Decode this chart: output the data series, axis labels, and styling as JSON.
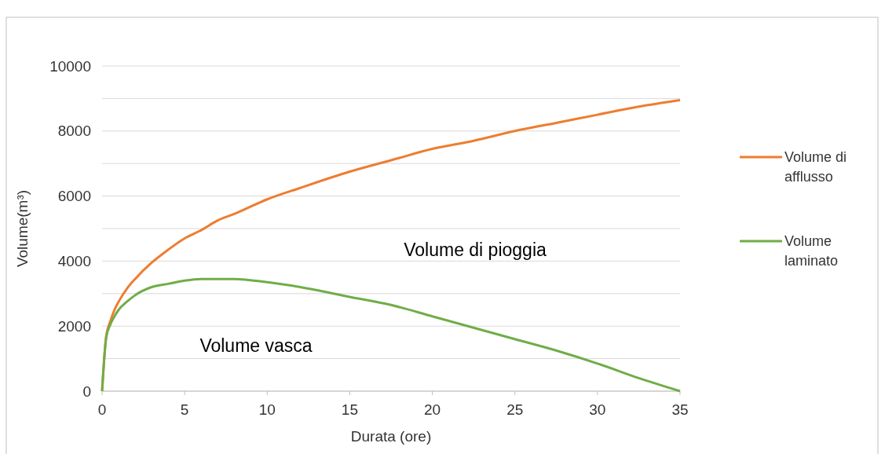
{
  "chart_data": {
    "type": "line",
    "xlabel": "Durata (ore)",
    "ylabel": "Volume(m³)",
    "xlim": [
      0,
      35
    ],
    "xticks": [
      0,
      5,
      10,
      15,
      20,
      25,
      30,
      35
    ],
    "ylim": [
      0,
      10000
    ],
    "yticks": [
      0,
      {
        "value": 1000,
        "label": null
      },
      2000,
      {
        "value": 3000,
        "label": null
      },
      4000,
      {
        "value": 5000,
        "label": null
      },
      6000,
      {
        "value": 7000,
        "label": null
      },
      8000,
      {
        "value": 9000,
        "label": null
      },
      10000
    ],
    "grid": "y",
    "legend": "right",
    "marker": "none",
    "line_style": "solid",
    "x": [
      0,
      0.25,
      0.5,
      0.75,
      1,
      1.5,
      2,
      3,
      4,
      5,
      6,
      7,
      8,
      10,
      12,
      15,
      17.5,
      20,
      22.5,
      25,
      27.5,
      30,
      32.5,
      35
    ],
    "series": [
      {
        "name": "Volume di afflusso",
        "color": "#ed7d31",
        "values": [
          0,
          1700,
          2150,
          2500,
          2750,
          3150,
          3450,
          3950,
          4350,
          4700,
          4950,
          5250,
          5450,
          5900,
          6250,
          6750,
          7100,
          7450,
          7700,
          8000,
          8250,
          8500,
          8750,
          8950
        ]
      },
      {
        "name": "Volume laminato",
        "color": "#70ad47",
        "values": [
          0,
          1650,
          2050,
          2300,
          2500,
          2750,
          2950,
          3200,
          3300,
          3400,
          3450,
          3450,
          3450,
          3350,
          3200,
          2900,
          2650,
          2300,
          1950,
          1600,
          1250,
          850,
          400,
          0
        ]
      }
    ],
    "annotations": [
      "Volume di pioggia",
      "Volume vasca"
    ]
  }
}
